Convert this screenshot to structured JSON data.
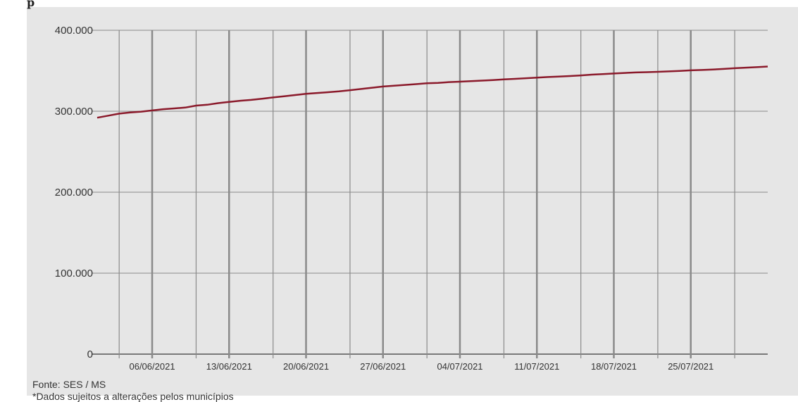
{
  "header_fragment": "p",
  "chart_data": {
    "type": "line",
    "title": "",
    "xlabel": "",
    "ylabel": "",
    "ylim": [
      0,
      400000
    ],
    "yticks": [
      0,
      100000,
      200000,
      300000,
      400000
    ],
    "ytick_labels": [
      "0",
      "100.000",
      "200.000",
      "300.000",
      "400.000"
    ],
    "xlim": [
      "2021-06-01",
      "2021-08-01"
    ],
    "xtick_dates": [
      "2021-06-06",
      "2021-06-13",
      "2021-06-20",
      "2021-06-27",
      "2021-07-04",
      "2021-07-11",
      "2021-07-18",
      "2021-07-25"
    ],
    "xtick_labels": [
      "06/06/2021",
      "13/06/2021",
      "20/06/2021",
      "27/06/2021",
      "04/07/2021",
      "11/07/2021",
      "18/07/2021",
      "25/07/2021"
    ],
    "grid": true,
    "line_color": "#8b1a2b",
    "series": [
      {
        "x": [
          "2021-06-01",
          "2021-06-02",
          "2021-06-03",
          "2021-06-04",
          "2021-06-05",
          "2021-06-06",
          "2021-06-07",
          "2021-06-08",
          "2021-06-09",
          "2021-06-10",
          "2021-06-11",
          "2021-06-12",
          "2021-06-13",
          "2021-06-14",
          "2021-06-15",
          "2021-06-16",
          "2021-06-17",
          "2021-06-18",
          "2021-06-19",
          "2021-06-20",
          "2021-06-21",
          "2021-06-22",
          "2021-06-23",
          "2021-06-24",
          "2021-06-25",
          "2021-06-26",
          "2021-06-27",
          "2021-06-28",
          "2021-06-29",
          "2021-06-30",
          "2021-07-01",
          "2021-07-02",
          "2021-07-03",
          "2021-07-04",
          "2021-07-05",
          "2021-07-06",
          "2021-07-07",
          "2021-07-08",
          "2021-07-09",
          "2021-07-10",
          "2021-07-11",
          "2021-07-12",
          "2021-07-13",
          "2021-07-14",
          "2021-07-15",
          "2021-07-16",
          "2021-07-17",
          "2021-07-18",
          "2021-07-19",
          "2021-07-20",
          "2021-07-21",
          "2021-07-22",
          "2021-07-23",
          "2021-07-24",
          "2021-07-25",
          "2021-07-26",
          "2021-07-27",
          "2021-07-28",
          "2021-07-29",
          "2021-07-30",
          "2021-07-31",
          "2021-08-01"
        ],
        "y": [
          292000,
          294500,
          297000,
          298500,
          299500,
          301000,
          302500,
          303500,
          304500,
          307000,
          308000,
          310000,
          311500,
          313000,
          314000,
          315500,
          317000,
          318500,
          320000,
          321500,
          322500,
          323500,
          324500,
          326000,
          327500,
          329000,
          330500,
          331500,
          332500,
          333500,
          334500,
          335000,
          336000,
          336500,
          337200,
          337800,
          338500,
          339300,
          340000,
          340800,
          341500,
          342300,
          342800,
          343500,
          344300,
          345200,
          345900,
          346600,
          347300,
          347900,
          348300,
          348700,
          349200,
          349800,
          350500,
          351000,
          351600,
          352300,
          353100,
          353800,
          354400,
          355200
        ]
      }
    ]
  },
  "footer": {
    "source": "Fonte: SES / MS",
    "note": "*Dados sujeitos a alterações pelos municípios"
  }
}
